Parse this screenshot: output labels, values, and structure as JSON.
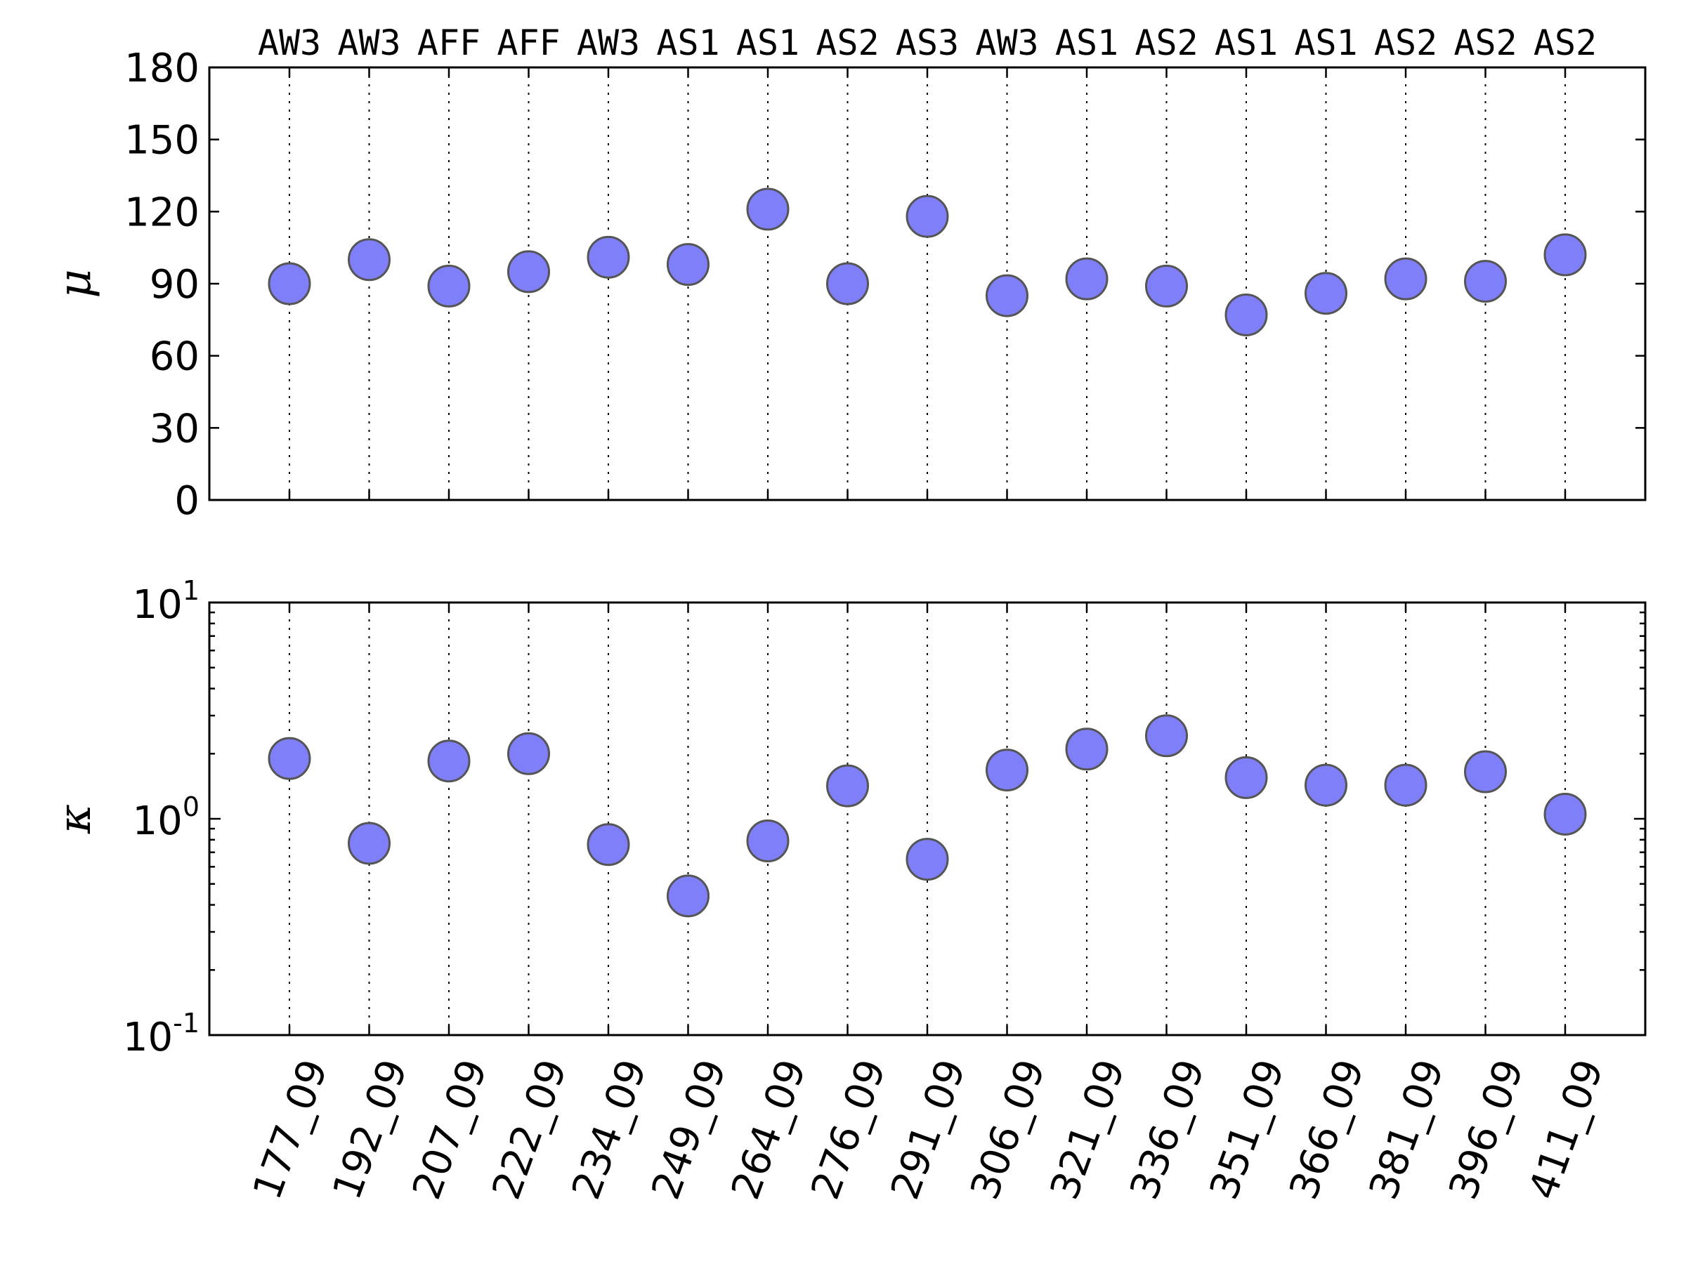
{
  "chart_data": [
    {
      "type": "scatter",
      "ylabel": "μ",
      "scale": "linear",
      "ylim": [
        0,
        180
      ],
      "yticks": [
        0,
        30,
        60,
        90,
        120,
        150,
        180
      ],
      "ytick_labels": [
        "0",
        "30",
        "60",
        "90",
        "120",
        "150",
        "180"
      ],
      "top_labels": [
        "AW3",
        "AW3",
        "AFF",
        "AFF",
        "AW3",
        "AS1",
        "AS1",
        "AS2",
        "AS3",
        "AW3",
        "AS1",
        "AS2",
        "AS1",
        "AS1",
        "AS2",
        "AS2",
        "AS2"
      ],
      "values": [
        90,
        100,
        89,
        95,
        101,
        98,
        121,
        90,
        118,
        85,
        92,
        89,
        77,
        86,
        92,
        91,
        102
      ],
      "grid": "vertical dotted",
      "marker_color": "#7f7ffa"
    },
    {
      "type": "scatter",
      "ylabel": "κ",
      "scale": "log",
      "ylim": [
        0.1,
        10
      ],
      "ytick_labels": [
        {
          "base": "10",
          "exp": "-1"
        },
        {
          "base": "10",
          "exp": "0"
        },
        {
          "base": "10",
          "exp": "1"
        }
      ],
      "categories": [
        "177_09",
        "192_09",
        "207_09",
        "222_09",
        "234_09",
        "249_09",
        "264_09",
        "276_09",
        "291_09",
        "306_09",
        "321_09",
        "336_09",
        "351_09",
        "366_09",
        "381_09",
        "396_09",
        "411_09"
      ],
      "values": [
        1.9,
        0.77,
        1.85,
        2.0,
        0.76,
        0.44,
        0.79,
        1.42,
        0.65,
        1.68,
        2.1,
        2.42,
        1.55,
        1.43,
        1.43,
        1.65,
        1.05
      ],
      "grid": "vertical dotted",
      "marker_color": "#7f7ffa"
    }
  ]
}
